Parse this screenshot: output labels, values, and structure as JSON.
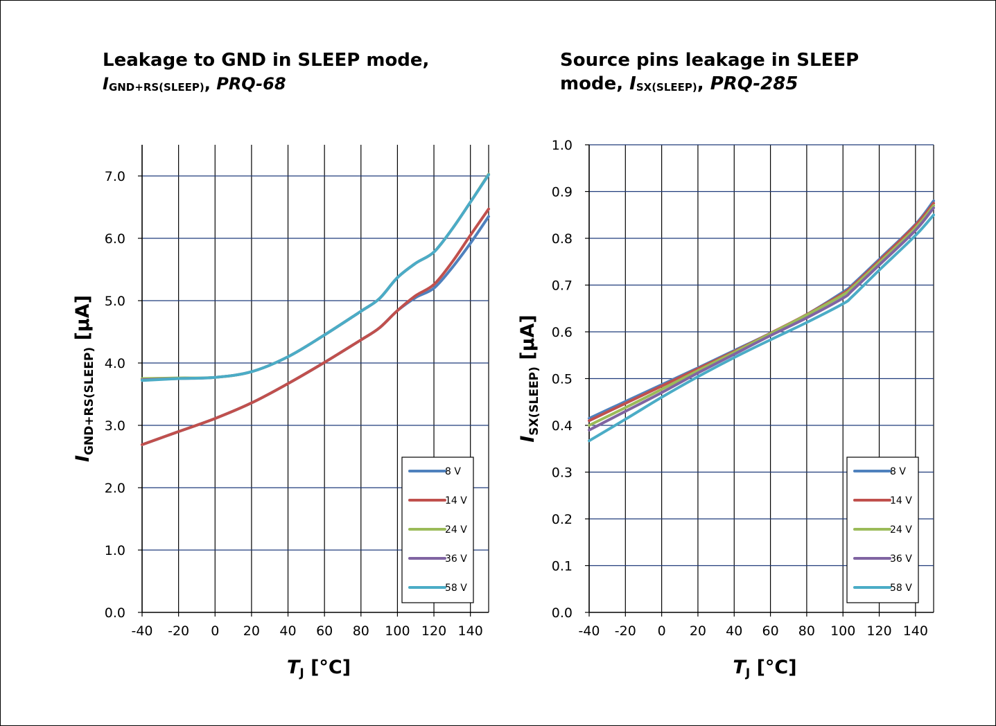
{
  "charts": [
    {
      "title_line1": "Leakage to GND in SLEEP mode,",
      "title_line2_sym": "I",
      "title_line2_sub": "GND+RS(SLEEP)",
      "title_line2_sep": ", ",
      "title_line2_ref": "PRQ-68",
      "ylabel_sym": "I",
      "ylabel_sub": "GND+RS(SLEEP)",
      "ylabel_unit": " [µA]",
      "xlabel_sym": "T",
      "xlabel_sub": "J",
      "xlabel_unit": " [°C]"
    },
    {
      "title_line1": "Source pins leakage in SLEEP",
      "title_line2_pre": "mode, ",
      "title_line2_sym": "I",
      "title_line2_sub": "SX(SLEEP)",
      "title_line2_sep": ", ",
      "title_line2_ref": "PRQ-285",
      "ylabel_sym": "I",
      "ylabel_sub": "SX(SLEEP)",
      "ylabel_unit": " [µA]",
      "xlabel_sym": "T",
      "xlabel_sub": "J",
      "xlabel_unit": " [°C]"
    }
  ],
  "chart_data": [
    {
      "type": "line",
      "title": "Leakage to GND in SLEEP mode, IGND+RS(SLEEP), PRQ-68",
      "xlabel": "TJ [°C]",
      "ylabel": "IGND+RS(SLEEP) [µA]",
      "xlim": [
        -40,
        150
      ],
      "ylim": [
        0,
        7.5
      ],
      "xticks": [
        -40,
        -20,
        0,
        20,
        40,
        60,
        80,
        100,
        120,
        140
      ],
      "xtick_labels": [
        "-40",
        "-20",
        "0",
        "20",
        "40",
        "60",
        "80",
        "100",
        "120",
        "140"
      ],
      "yticks": [
        0,
        1,
        2,
        3,
        4,
        5,
        6,
        7
      ],
      "ytick_labels": [
        "0.0",
        "1.0",
        "2.0",
        "3.0",
        "4.0",
        "5.0",
        "6.0",
        "7.0"
      ],
      "grid": true,
      "legend_position": "bottom-right",
      "x": [
        -40,
        -20,
        0,
        20,
        40,
        60,
        80,
        90,
        100,
        110,
        120,
        130,
        140,
        150
      ],
      "series": [
        {
          "name": "8 V",
          "color": "#4f81bd",
          "values": [
            2.69,
            2.9,
            3.11,
            3.36,
            3.67,
            4.01,
            4.37,
            4.56,
            4.84,
            5.05,
            5.2,
            5.53,
            5.92,
            6.35
          ]
        },
        {
          "name": "14 V",
          "color": "#c0504d",
          "values": [
            2.69,
            2.9,
            3.11,
            3.36,
            3.67,
            4.01,
            4.37,
            4.56,
            4.84,
            5.08,
            5.26,
            5.62,
            6.05,
            6.47
          ]
        },
        {
          "name": "24 V",
          "color": "#9bbb59",
          "values": [
            3.75,
            3.76,
            3.77,
            3.86,
            4.1,
            4.45,
            4.83,
            5.03,
            5.37,
            5.6,
            5.78,
            6.15,
            6.58,
            7.03
          ]
        },
        {
          "name": "36 V",
          "color": "#8064a2",
          "values": [
            3.73,
            3.75,
            3.77,
            3.86,
            4.1,
            4.45,
            4.83,
            5.03,
            5.37,
            5.6,
            5.78,
            6.15,
            6.58,
            7.02
          ]
        },
        {
          "name": "58 V",
          "color": "#4bacc6",
          "values": [
            3.72,
            3.75,
            3.77,
            3.86,
            4.1,
            4.45,
            4.83,
            5.03,
            5.37,
            5.6,
            5.78,
            6.15,
            6.58,
            7.02
          ]
        }
      ]
    },
    {
      "type": "line",
      "title": "Source pins leakage in SLEEP mode, ISX(SLEEP), PRQ-285",
      "xlabel": "TJ [°C]",
      "ylabel": "ISX(SLEEP) [µA]",
      "xlim": [
        -40,
        150
      ],
      "ylim": [
        0,
        1.0
      ],
      "xticks": [
        -40,
        -20,
        0,
        20,
        40,
        60,
        80,
        100,
        120,
        140
      ],
      "xtick_labels": [
        "-40",
        "-20",
        "0",
        "20",
        "40",
        "60",
        "80",
        "100",
        "120",
        "140"
      ],
      "yticks": [
        0,
        0.1,
        0.2,
        0.3,
        0.4,
        0.5,
        0.6,
        0.7,
        0.8,
        0.9,
        1.0
      ],
      "ytick_labels": [
        "0.0",
        "0.1",
        "0.2",
        "0.3",
        "0.4",
        "0.5",
        "0.6",
        "0.7",
        "0.8",
        "0.9",
        "1.0"
      ],
      "grid": true,
      "legend_position": "bottom-right",
      "x": [
        -40,
        -20,
        0,
        20,
        40,
        60,
        80,
        100,
        105,
        120,
        140,
        150
      ],
      "series": [
        {
          "name": "8 V",
          "color": "#4f81bd",
          "values": [
            0.415,
            0.451,
            0.487,
            0.523,
            0.56,
            0.597,
            0.637,
            0.685,
            0.7,
            0.755,
            0.83,
            0.88
          ]
        },
        {
          "name": "14 V",
          "color": "#c0504d",
          "values": [
            0.41,
            0.447,
            0.484,
            0.521,
            0.558,
            0.597,
            0.637,
            0.682,
            0.697,
            0.752,
            0.828,
            0.875
          ]
        },
        {
          "name": "24 V",
          "color": "#9bbb59",
          "values": [
            0.4,
            0.438,
            0.477,
            0.517,
            0.556,
            0.596,
            0.636,
            0.679,
            0.694,
            0.748,
            0.822,
            0.87
          ]
        },
        {
          "name": "36 V",
          "color": "#8064a2",
          "values": [
            0.39,
            0.43,
            0.47,
            0.512,
            0.552,
            0.592,
            0.63,
            0.672,
            0.688,
            0.743,
            0.817,
            0.865
          ]
        },
        {
          "name": "58 V",
          "color": "#4bacc6",
          "values": [
            0.367,
            0.413,
            0.46,
            0.504,
            0.545,
            0.583,
            0.62,
            0.66,
            0.675,
            0.732,
            0.806,
            0.85
          ]
        }
      ]
    }
  ]
}
